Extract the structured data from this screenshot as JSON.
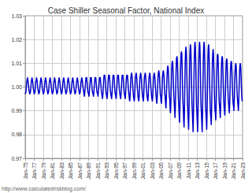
{
  "chart_data": {
    "type": "line",
    "title": "Case Shiller Seasonal Factor, National Index",
    "annotations": [
      "http://www.calculatedriskblog.com/"
    ],
    "color": "#0000cc",
    "grid": true,
    "ylim": [
      0.97,
      1.03
    ],
    "yticks": [
      0.97,
      0.98,
      0.99,
      {
        "value": 1,
        "label": "1.00"
      },
      1.01,
      1.02,
      1.03
    ],
    "categories": [
      "Jan-75",
      null,
      null,
      null,
      null,
      null,
      null,
      null,
      null,
      null,
      null,
      null,
      null,
      null,
      null,
      null,
      null,
      null,
      null,
      null,
      null,
      null,
      null,
      null,
      "Jan-77",
      null,
      null,
      null,
      null,
      null,
      null,
      null,
      null,
      null,
      null,
      null,
      null,
      null,
      null,
      null,
      null,
      null,
      null,
      null,
      null,
      null,
      null,
      null,
      "Jan-79",
      null,
      null,
      null,
      null,
      null,
      null,
      null,
      null,
      null,
      null,
      null,
      null,
      null,
      null,
      null,
      null,
      null,
      null,
      null,
      null,
      null,
      null,
      null,
      "Jan-81",
      null,
      null,
      null,
      null,
      null,
      null,
      null,
      null,
      null,
      null,
      null,
      null,
      null,
      null,
      null,
      null,
      null,
      null,
      null,
      null,
      null,
      null,
      null,
      "Jan-83",
      null,
      null,
      null,
      null,
      null,
      null,
      null,
      null,
      null,
      null,
      null,
      null,
      null,
      null,
      null,
      null,
      null,
      null,
      null,
      null,
      null,
      null,
      null,
      "Jan-85",
      null,
      null,
      null,
      null,
      null,
      null,
      null,
      null,
      null,
      null,
      null,
      null,
      null,
      null,
      null,
      null,
      null,
      null,
      null,
      null,
      null,
      null,
      null,
      "Jan-87",
      null,
      null,
      null,
      null,
      null,
      null,
      null,
      null,
      null,
      null,
      null,
      null,
      null,
      null,
      null,
      null,
      null,
      null,
      null,
      null,
      null,
      null,
      null,
      "Jan-89",
      null,
      null,
      null,
      null,
      null,
      null,
      null,
      null,
      null,
      null,
      null,
      null,
      null,
      null,
      null,
      null,
      null,
      null,
      null,
      null,
      null,
      null,
      null,
      "Jan-91",
      null,
      null,
      null,
      null,
      null,
      null,
      null,
      null,
      null,
      null,
      null,
      null,
      null,
      null,
      null,
      null,
      null,
      null,
      null,
      null,
      null,
      null,
      null,
      "Jan-93",
      null,
      null,
      null,
      null,
      null,
      null,
      null,
      null,
      null,
      null,
      null,
      null,
      null,
      null,
      null,
      null,
      null,
      null,
      null,
      null,
      null,
      null,
      null,
      "Jan-95",
      null,
      null,
      null,
      null,
      null,
      null,
      null,
      null,
      null,
      null,
      null,
      null,
      null,
      null,
      null,
      null,
      null,
      null,
      null,
      null,
      null,
      null,
      null,
      "Jan-97",
      null,
      null,
      null,
      null,
      null,
      null,
      null,
      null,
      null,
      null,
      null,
      null,
      null,
      null,
      null,
      null,
      null,
      null,
      null,
      null,
      null,
      null,
      null,
      "Jan-99",
      null,
      null,
      null,
      null,
      null,
      null,
      null,
      null,
      null,
      null,
      null,
      null,
      null,
      null,
      null,
      null,
      null,
      null,
      null,
      null,
      null,
      null,
      null,
      "Jan-01",
      null,
      null,
      null,
      null,
      null,
      null,
      null,
      null,
      null,
      null,
      null,
      null,
      null,
      null,
      null,
      null,
      null,
      null,
      null,
      null,
      null,
      null,
      null,
      "Jan-03",
      null,
      null,
      null,
      null,
      null,
      null,
      null,
      null,
      null,
      null,
      null,
      null,
      null,
      null,
      null,
      null,
      null,
      null,
      null,
      null,
      null,
      null,
      null,
      "Jan-05",
      null,
      null,
      null,
      null,
      null,
      null,
      null,
      null,
      null,
      null,
      null,
      null,
      null,
      null,
      null,
      null,
      null,
      null,
      null,
      null,
      null,
      null,
      null,
      "Jan-07",
      null,
      null,
      null,
      null,
      null,
      null,
      null,
      null,
      null,
      null,
      null,
      null,
      null,
      null,
      null,
      null,
      null,
      null,
      null,
      null,
      null,
      null,
      null,
      "Jan-09",
      null,
      null,
      null,
      null,
      null,
      null,
      null,
      null,
      null,
      null,
      null,
      null,
      null,
      null,
      null,
      null,
      null,
      null,
      null,
      null,
      null,
      null,
      null,
      "Jan-11",
      null,
      null,
      null,
      null,
      null,
      null,
      null,
      null,
      null,
      null,
      null,
      null,
      null,
      null,
      null,
      null,
      null,
      null,
      null,
      null,
      null,
      null,
      null,
      "Jan-13",
      null,
      null,
      null,
      null,
      null,
      null,
      null,
      null,
      null,
      null,
      null,
      null,
      null,
      null,
      null,
      null,
      null,
      null,
      null,
      null,
      null,
      null,
      null,
      "Jan-15",
      null,
      null,
      null,
      null,
      null,
      null,
      null,
      null,
      null,
      null,
      null,
      null,
      null,
      null,
      null,
      null,
      null,
      null,
      null,
      null,
      null,
      null,
      null,
      "Jan-17",
      null,
      null,
      null,
      null,
      null,
      null,
      null,
      null,
      null,
      null,
      null,
      null,
      null,
      null,
      null,
      null,
      null,
      null,
      null,
      null,
      null,
      null,
      null,
      "Jan-19",
      null,
      null,
      null,
      null,
      null,
      null,
      null,
      null,
      null,
      null,
      null,
      null,
      null,
      null,
      null,
      null,
      null,
      null,
      null,
      null,
      null,
      null,
      null,
      "Jan-21",
      null,
      null,
      null,
      null,
      null,
      null,
      null,
      null,
      null,
      null,
      null,
      null,
      null,
      null,
      null,
      null,
      null,
      null,
      null,
      null,
      null,
      null,
      null,
      "Jan-23"
    ],
    "values": [
      0.997,
      0.997,
      0.998,
      1.0,
      1.002,
      1.003,
      1.004,
      1.003,
      1.002,
      1.0,
      0.999,
      0.998,
      0.997,
      0.997,
      0.998,
      1.0,
      1.002,
      1.003,
      1.004,
      1.003,
      1.002,
      1.0,
      0.999,
      0.998,
      0.997,
      0.997,
      0.998,
      1.0,
      1.002,
      1.003,
      1.004,
      1.003,
      1.002,
      1.0,
      0.999,
      0.998,
      0.997,
      0.997,
      0.998,
      1.0,
      1.002,
      1.003,
      1.004,
      1.003,
      1.002,
      1.0,
      0.999,
      0.998,
      0.997,
      0.997,
      0.998,
      1.0,
      1.002,
      1.003,
      1.004,
      1.003,
      1.002,
      1.0,
      0.999,
      0.998,
      0.997,
      0.997,
      0.998,
      1.0,
      1.002,
      1.003,
      1.004,
      1.003,
      1.002,
      1.0,
      0.999,
      0.998,
      0.997,
      0.997,
      0.998,
      1.0,
      1.002,
      1.003,
      1.004,
      1.003,
      1.002,
      1.0,
      0.999,
      0.998,
      0.997,
      0.997,
      0.998,
      1.0,
      1.002,
      1.003,
      1.004,
      1.003,
      1.002,
      1.0,
      0.999,
      0.998,
      0.997,
      0.997,
      0.998,
      1.0,
      1.002,
      1.003,
      1.004,
      1.003,
      1.002,
      1.0,
      0.999,
      0.998,
      0.997,
      0.997,
      0.998,
      1.0,
      1.002,
      1.003,
      1.004,
      1.003,
      1.002,
      1.0,
      0.999,
      0.998,
      0.997,
      0.997,
      0.998,
      1.0,
      1.002,
      1.003,
      1.004,
      1.003,
      1.002,
      1.0,
      0.999,
      0.998,
      0.997,
      0.997,
      0.998,
      1.0,
      1.002,
      1.003,
      1.004,
      1.003,
      1.002,
      1.0,
      0.999,
      0.998,
      0.997,
      0.997,
      0.998,
      1.0,
      1.002,
      1.003,
      1.004,
      1.003,
      1.002,
      1.0,
      0.999,
      0.998,
      0.997,
      0.996,
      0.998,
      1.0,
      1.002,
      1.004,
      1.004,
      1.004,
      1.002,
      1.0,
      0.998,
      0.998,
      0.997,
      0.996,
      0.998,
      1.0,
      1.002,
      1.004,
      1.004,
      1.004,
      1.002,
      1.0,
      0.998,
      0.998,
      0.997,
      0.996,
      0.998,
      1.0,
      1.002,
      1.004,
      1.004,
      1.004,
      1.002,
      1.0,
      0.998,
      0.998,
      0.997,
      0.996,
      0.998,
      1.0,
      1.002,
      1.004,
      1.004,
      1.004,
      1.002,
      1.0,
      0.998,
      0.998,
      0.996,
      0.995,
      0.997,
      1.0,
      1.003,
      1.005,
      1.005,
      1.005,
      1.003,
      1.0,
      0.998,
      0.997,
      0.996,
      0.995,
      0.997,
      1.0,
      1.003,
      1.005,
      1.005,
      1.005,
      1.003,
      1.0,
      0.998,
      0.997,
      0.996,
      0.995,
      0.997,
      1.0,
      1.003,
      1.005,
      1.005,
      1.005,
      1.003,
      1.0,
      0.998,
      0.997,
      0.996,
      0.995,
      0.997,
      1.0,
      1.003,
      1.005,
      1.005,
      1.005,
      1.003,
      1.0,
      0.998,
      0.997,
      0.996,
      0.995,
      0.997,
      1.0,
      1.003,
      1.005,
      1.005,
      1.005,
      1.003,
      1.0,
      0.998,
      0.997,
      0.996,
      0.995,
      0.997,
      1.0,
      1.003,
      1.005,
      1.005,
      1.005,
      1.003,
      1.0,
      0.998,
      0.997,
      0.995,
      0.994,
      0.996,
      1.0,
      1.004,
      1.005,
      1.006,
      1.005,
      1.003,
      1.0,
      0.998,
      0.996,
      0.995,
      0.994,
      0.996,
      1.0,
      1.004,
      1.005,
      1.006,
      1.005,
      1.003,
      1.0,
      0.998,
      0.996,
      0.995,
      0.994,
      0.996,
      1.0,
      1.004,
      1.005,
      1.006,
      1.005,
      1.003,
      1.0,
      0.998,
      0.996,
      0.995,
      0.994,
      0.996,
      1.0,
      1.004,
      1.005,
      1.006,
      1.005,
      1.003,
      1.0,
      0.998,
      0.996,
      0.995,
      0.994,
      0.996,
      1.0,
      1.004,
      1.005,
      1.006,
      1.005,
      1.003,
      1.0,
      0.998,
      0.996,
      0.995,
      0.994,
      0.996,
      1.0,
      1.004,
      1.005,
      1.006,
      1.005,
      1.003,
      1.0,
      0.998,
      0.996,
      0.994,
      0.993,
      0.996,
      1.0,
      1.004,
      1.006,
      1.007,
      1.006,
      1.004,
      1.0,
      0.997,
      0.996,
      0.994,
      0.993,
      0.996,
      1.0,
      1.004,
      1.006,
      1.007,
      1.006,
      1.004,
      1.0,
      0.997,
      0.996,
      0.993,
      0.991,
      0.995,
      1.0,
      1.005,
      1.008,
      1.009,
      1.008,
      1.005,
      1.0,
      0.996,
      0.995,
      0.991,
      0.989,
      0.993,
      1.0,
      1.007,
      1.01,
      1.011,
      1.01,
      1.006,
      1.0,
      0.996,
      0.993,
      0.99,
      0.987,
      0.992,
      1.0,
      1.008,
      1.012,
      1.013,
      1.012,
      1.007,
      1.0,
      0.995,
      0.992,
      0.988,
      0.985,
      0.991,
      1.0,
      1.009,
      1.014,
      1.015,
      1.014,
      1.008,
      1.0,
      0.994,
      0.991,
      0.986,
      0.983,
      0.99,
      1.0,
      1.01,
      1.015,
      1.017,
      1.015,
      1.009,
      1.0,
      0.993,
      0.99,
      0.986,
      0.982,
      0.989,
      1.0,
      1.011,
      1.016,
      1.018,
      1.016,
      1.009,
      1.0,
      0.993,
      0.989,
      0.985,
      0.981,
      0.989,
      1.0,
      1.011,
      1.017,
      1.019,
      1.017,
      1.01,
      1.0,
      0.992,
      0.989,
      0.985,
      0.981,
      0.989,
      1.0,
      1.011,
      1.017,
      1.019,
      1.017,
      1.01,
      1.0,
      0.992,
      0.989,
      0.985,
      0.981,
      0.989,
      1.0,
      1.011,
      1.017,
      1.019,
      1.017,
      1.01,
      1.0,
      0.992,
      0.989,
      0.986,
      0.982,
      0.989,
      1.0,
      1.011,
      1.016,
      1.018,
      1.016,
      1.009,
      1.0,
      0.993,
      0.989,
      0.987,
      0.984,
      0.99,
      1.0,
      1.01,
      1.014,
      1.016,
      1.014,
      1.008,
      1.0,
      0.994,
      0.99,
      0.989,
      0.986,
      0.992,
      1.0,
      1.008,
      1.013,
      1.014,
      1.013,
      1.007,
      1.0,
      0.994,
      0.992,
      0.99,
      0.987,
      0.992,
      1.0,
      1.008,
      1.012,
      1.013,
      1.012,
      1.007,
      1.0,
      0.995,
      0.992,
      0.99,
      0.988,
      0.993,
      1.0,
      1.007,
      1.011,
      1.012,
      1.011,
      1.006,
      1.0,
      0.995,
      0.993,
      0.991,
      0.989,
      0.993,
      1.0,
      1.007,
      1.01,
      1.011,
      1.01,
      1.006,
      1.0,
      0.996,
      0.993,
      0.992,
      0.99,
      0.994,
      1.0,
      1.006,
      1.009,
      1.01,
      1.009,
      1.005,
      1.0,
      0.996,
      0.994,
      0.992,
      0.99,
      0.994,
      1.0,
      1.006,
      1.009,
      1.01,
      1.009,
      1.005,
      1.0,
      0.996,
      0.994,
      null
    ]
  }
}
